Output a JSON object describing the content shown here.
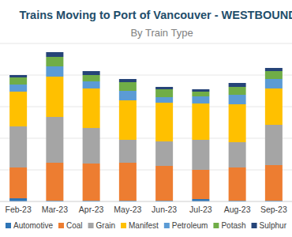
{
  "chart_data": {
    "type": "bar",
    "title": "Trains Moving to Port of Vancouver - WESTBOUND",
    "subtitle": "By Train Type",
    "stacked": true,
    "grid": true,
    "legend": "bottom",
    "tick_labels": "x",
    "categories": [
      "Feb-23",
      "Mar-23",
      "Apr-23",
      "May-23",
      "Jun-23",
      "Jul-23",
      "Aug-23",
      "Sep-23"
    ],
    "ylim": [
      0,
      200
    ],
    "yticks": [
      0,
      40,
      80,
      120,
      160,
      200
    ],
    "series": [
      {
        "name": "Automotive",
        "color": "#2e75b6",
        "values": [
          4,
          1,
          1,
          1,
          1,
          3,
          1,
          1
        ]
      },
      {
        "name": "Coal",
        "color": "#ed7d31",
        "values": [
          39,
          48,
          47,
          48,
          44,
          37,
          42,
          45
        ]
      },
      {
        "name": "Grain",
        "color": "#a5a5a5",
        "values": [
          52,
          58,
          45,
          29,
          31,
          38,
          32,
          51
        ]
      },
      {
        "name": "Manifest",
        "color": "#ffc000",
        "values": [
          44,
          51,
          50,
          50,
          49,
          46,
          48,
          46
        ]
      },
      {
        "name": "Petroleum",
        "color": "#5b9bd5",
        "values": [
          9,
          13,
          9,
          12,
          7,
          9,
          12,
          12
        ]
      },
      {
        "name": "Potash",
        "color": "#70ad47",
        "values": [
          9,
          12,
          8,
          11,
          10,
          6,
          10,
          10
        ]
      },
      {
        "name": "Sulphur",
        "color": "#264478",
        "values": [
          3,
          6,
          5,
          4,
          3,
          3,
          5,
          4
        ]
      }
    ]
  }
}
